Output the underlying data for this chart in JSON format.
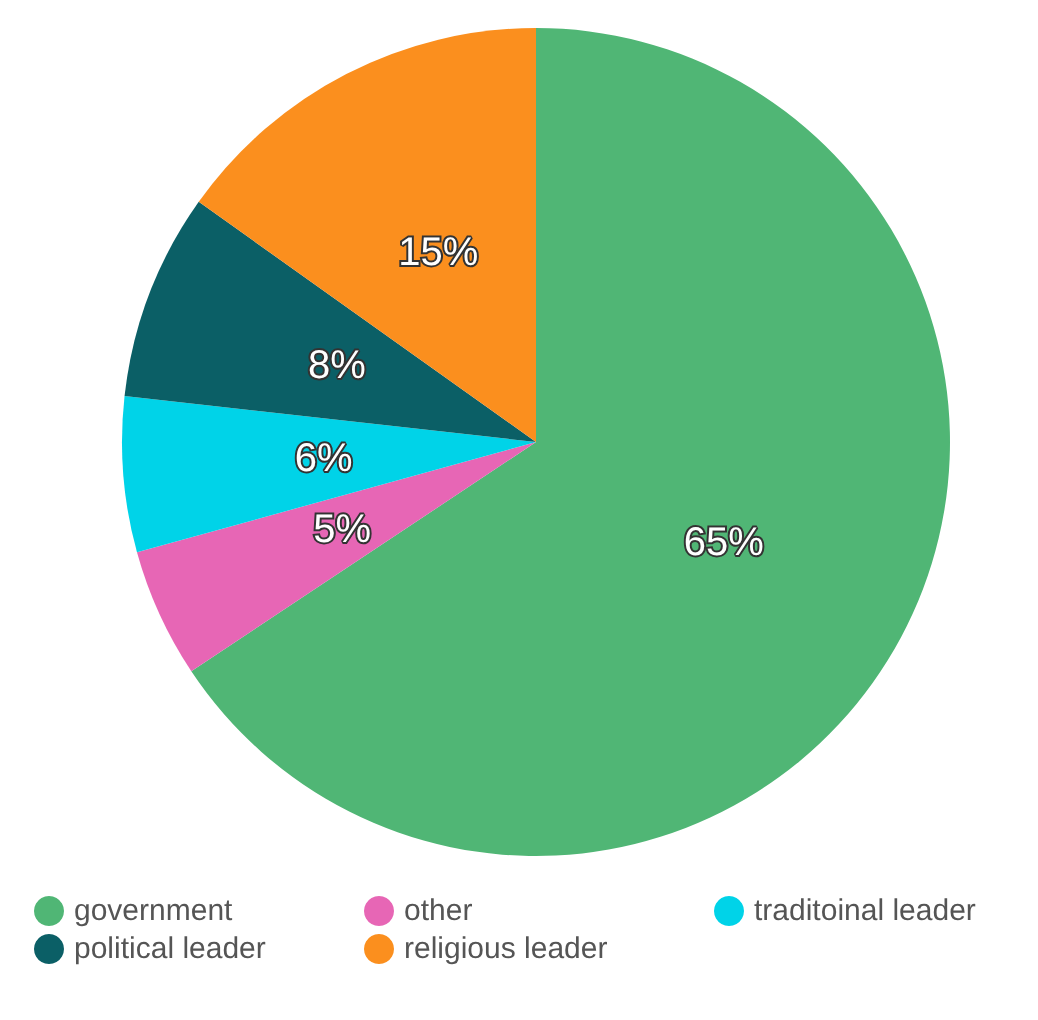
{
  "chart_data": {
    "type": "pie",
    "categories": [
      "government",
      "other",
      "traditoinal leader",
      "political leader",
      "religious leader"
    ],
    "values": [
      65,
      5,
      6,
      8,
      15
    ],
    "value_labels": [
      "65%",
      "5%",
      "6%",
      "8%",
      "15%"
    ],
    "colors": [
      "#50b675",
      "#e766b5",
      "#00d3e8",
      "#0b5f66",
      "#fb8f1e"
    ],
    "legend": "bottom"
  }
}
